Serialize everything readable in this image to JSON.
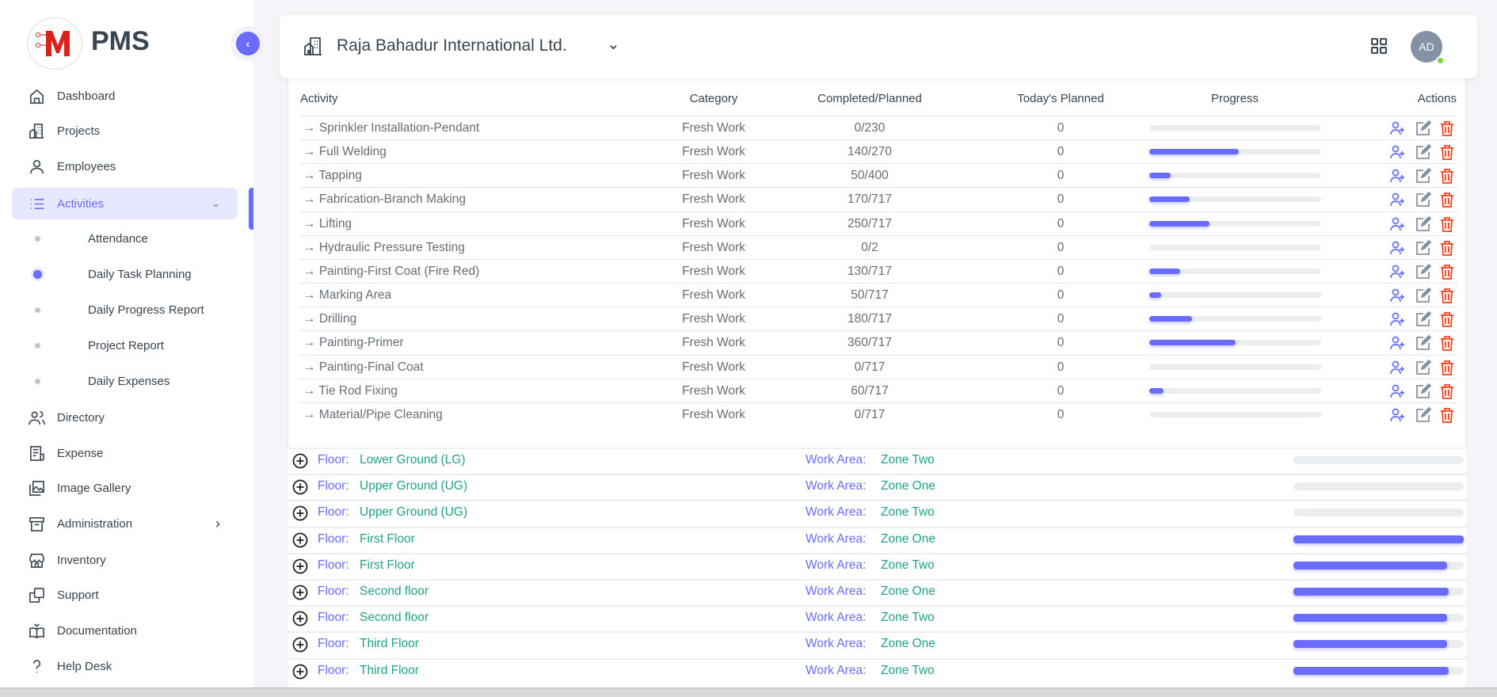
{
  "brand": {
    "name": "PMS",
    "logo_letter": "M"
  },
  "sidebar": {
    "items": [
      {
        "label": "Dashboard",
        "icon": "home-icon"
      },
      {
        "label": "Projects",
        "icon": "building-icon"
      },
      {
        "label": "Employees",
        "icon": "user-icon"
      },
      {
        "label": "Activities",
        "icon": "list-icon",
        "active": true,
        "expanded": true
      },
      {
        "label": "Directory",
        "icon": "users-icon"
      },
      {
        "label": "Expense",
        "icon": "receipt-icon"
      },
      {
        "label": "Image Gallery",
        "icon": "gallery-icon"
      },
      {
        "label": "Administration",
        "icon": "archive-icon",
        "has_children": true
      },
      {
        "label": "Inventory",
        "icon": "store-icon"
      },
      {
        "label": "Support",
        "icon": "copy-icon"
      },
      {
        "label": "Documentation",
        "icon": "book-icon"
      },
      {
        "label": "Help Desk",
        "icon": "question-icon"
      }
    ],
    "sub_items": [
      {
        "label": "Attendance"
      },
      {
        "label": "Daily Task Planning",
        "active": true
      },
      {
        "label": "Daily Progress Report"
      },
      {
        "label": "Project Report"
      },
      {
        "label": "Daily Expenses"
      }
    ]
  },
  "header": {
    "project": "Raja Bahadur International Ltd.",
    "avatar_initials": "AD",
    "status": "online"
  },
  "table": {
    "columns": [
      "Activity",
      "Category",
      "Completed/Planned",
      "Today's Planned",
      "Progress",
      "Actions"
    ],
    "rows": [
      {
        "activity": "Sprinkler Installation-Pendant",
        "category": "Fresh Work",
        "completed": 0,
        "planned": 230,
        "cp": "0/230",
        "today": "0"
      },
      {
        "activity": "Full Welding",
        "category": "Fresh Work",
        "completed": 140,
        "planned": 270,
        "cp": "140/270",
        "today": "0"
      },
      {
        "activity": "Tapping",
        "category": "Fresh Work",
        "completed": 50,
        "planned": 400,
        "cp": "50/400",
        "today": "0"
      },
      {
        "activity": "Fabrication-Branch Making",
        "category": "Fresh Work",
        "completed": 170,
        "planned": 717,
        "cp": "170/717",
        "today": "0"
      },
      {
        "activity": "Lifting",
        "category": "Fresh Work",
        "completed": 250,
        "planned": 717,
        "cp": "250/717",
        "today": "0"
      },
      {
        "activity": "Hydraulic Pressure Testing",
        "category": "Fresh Work",
        "completed": 0,
        "planned": 2,
        "cp": "0/2",
        "today": "0"
      },
      {
        "activity": "Painting-First Coat (Fire Red)",
        "category": "Fresh Work",
        "completed": 130,
        "planned": 717,
        "cp": "130/717",
        "today": "0"
      },
      {
        "activity": "Marking Area",
        "category": "Fresh Work",
        "completed": 50,
        "planned": 717,
        "cp": "50/717",
        "today": "0"
      },
      {
        "activity": "Drilling",
        "category": "Fresh Work",
        "completed": 180,
        "planned": 717,
        "cp": "180/717",
        "today": "0"
      },
      {
        "activity": "Painting-Primer",
        "category": "Fresh Work",
        "completed": 360,
        "planned": 717,
        "cp": "360/717",
        "today": "0"
      },
      {
        "activity": "Painting-Final Coat",
        "category": "Fresh Work",
        "completed": 0,
        "planned": 717,
        "cp": "0/717",
        "today": "0"
      },
      {
        "activity": "Tie Rod Fixing",
        "category": "Fresh Work",
        "completed": 60,
        "planned": 717,
        "cp": "60/717",
        "today": "0"
      },
      {
        "activity": "Material/Pipe Cleaning",
        "category": "Fresh Work",
        "completed": 0,
        "planned": 717,
        "cp": "0/717",
        "today": "0"
      }
    ],
    "actions": [
      "assign-user-icon",
      "edit-icon",
      "delete-icon"
    ]
  },
  "floor_label": "Floor:",
  "work_area_label": "Work Area:",
  "floors": [
    {
      "floor": "Lower Ground (LG)",
      "work_area": "Zone Two",
      "progress": 0
    },
    {
      "floor": "Upper Ground (UG)",
      "work_area": "Zone One",
      "progress": 0
    },
    {
      "floor": "Upper Ground (UG)",
      "work_area": "Zone Two",
      "progress": 0
    },
    {
      "floor": "First Floor",
      "work_area": "Zone One",
      "progress": 1.0
    },
    {
      "floor": "First Floor",
      "work_area": "Zone Two",
      "progress": 0.9
    },
    {
      "floor": "Second floor",
      "work_area": "Zone One",
      "progress": 0.91
    },
    {
      "floor": "Second floor",
      "work_area": "Zone Two",
      "progress": 0.9
    },
    {
      "floor": "Third Floor",
      "work_area": "Zone One",
      "progress": 0.9
    },
    {
      "floor": "Third Floor",
      "work_area": "Zone Two",
      "progress": 0.91
    }
  ],
  "colors": {
    "accent": "#696cff",
    "green": "#20a386",
    "danger": "#ff3e1d",
    "text": "#384551"
  }
}
